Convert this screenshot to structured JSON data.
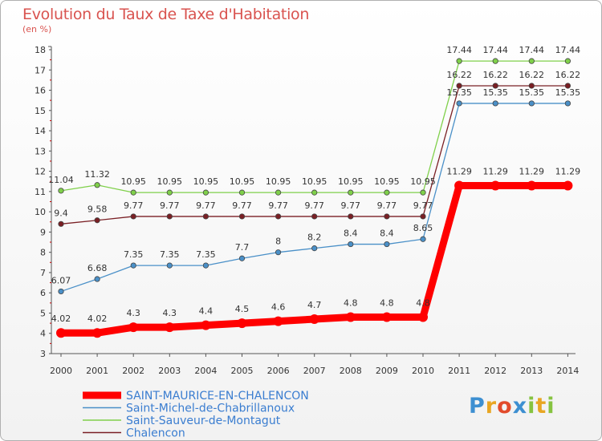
{
  "chart_data": {
    "type": "line",
    "title": "Evolution du Taux de Taxe d'Habitation",
    "ylabel": "(en %)",
    "x": [
      "2000",
      "2001",
      "2002",
      "2003",
      "2004",
      "2005",
      "2006",
      "2007",
      "2008",
      "2009",
      "2010",
      "2011",
      "2012",
      "2013",
      "2014"
    ],
    "ylim": [
      3,
      18
    ],
    "yticks": [
      "3",
      "4",
      "5",
      "6",
      "7",
      "8",
      "9",
      "10",
      "11",
      "12",
      "13",
      "14",
      "15",
      "16",
      "17",
      "18"
    ],
    "grid": false,
    "legend_placement": "bottom-left",
    "series": [
      {
        "name": "SAINT-MAURICE-EN-CHALENCON",
        "color": "#ff0000",
        "values": [
          4.02,
          4.02,
          4.3,
          4.3,
          4.4,
          4.5,
          4.6,
          4.7,
          4.8,
          4.8,
          4.8,
          11.29,
          11.29,
          11.29,
          11.29
        ],
        "labels": [
          "4.02",
          "4.02",
          "4.3",
          "4.3",
          "4.4",
          "4.5",
          "4.6",
          "4.7",
          "4.8",
          "4.8",
          "4.8",
          "11.29",
          "11.29",
          "11.29",
          "11.29"
        ]
      },
      {
        "name": "Saint-Michel-de-Chabrillanoux",
        "color": "#4a90c8",
        "values": [
          6.07,
          6.68,
          7.35,
          7.35,
          7.35,
          7.7,
          8,
          8.2,
          8.4,
          8.4,
          8.65,
          15.35,
          15.35,
          15.35,
          15.35
        ],
        "labels": [
          "6.07",
          "6.68",
          "7.35",
          "7.35",
          "7.35",
          "7.7",
          "8",
          "8.2",
          "8.4",
          "8.4",
          "8.65",
          "15.35",
          "15.35",
          "15.35",
          "15.35"
        ]
      },
      {
        "name": "Saint-Sauveur-de-Montagut",
        "color": "#7fd04a",
        "values": [
          11.04,
          11.32,
          10.95,
          10.95,
          10.95,
          10.95,
          10.95,
          10.95,
          10.95,
          10.95,
          10.95,
          17.44,
          17.44,
          17.44,
          17.44
        ],
        "labels": [
          "11.04",
          "11.32",
          "10.95",
          "10.95",
          "10.95",
          "10.95",
          "10.95",
          "10.95",
          "10.95",
          "10.95",
          "10.95",
          "17.44",
          "17.44",
          "17.44",
          "17.44"
        ]
      },
      {
        "name": "Chalencon",
        "color": "#7a1f24",
        "values": [
          9.4,
          9.58,
          9.77,
          9.77,
          9.77,
          9.77,
          9.77,
          9.77,
          9.77,
          9.77,
          9.77,
          16.22,
          16.22,
          16.22,
          16.22
        ],
        "labels": [
          "9.4",
          "9.58",
          "9.77",
          "9.77",
          "9.77",
          "9.77",
          "9.77",
          "9.77",
          "9.77",
          "9.77",
          "9.77",
          "16.22",
          "16.22",
          "16.22",
          "16.22"
        ]
      }
    ]
  },
  "logo": {
    "text": "Proxiti"
  }
}
